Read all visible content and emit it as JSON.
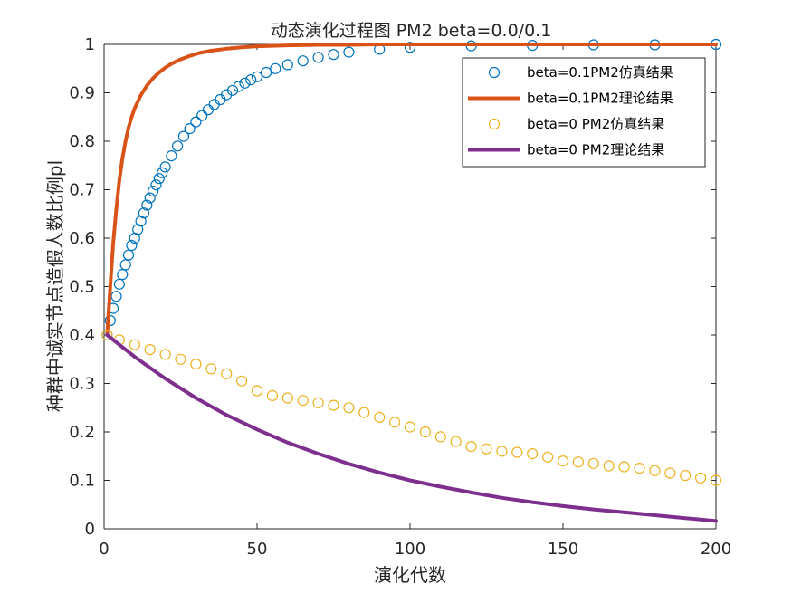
{
  "chart_data": {
    "type": "line",
    "title": "动态演化过程图 PM2 beta=0.0/0.1",
    "xlabel": "演化代数",
    "ylabel": "种群中诚实节点造假人数比例pl",
    "xlim": [
      0,
      200
    ],
    "ylim": [
      0,
      1
    ],
    "xticks": [
      0,
      50,
      100,
      150,
      200
    ],
    "xtick_labels": [
      "0",
      "50",
      "100",
      "150",
      "200"
    ],
    "yticks": [
      0,
      0.1,
      0.2,
      0.3,
      0.4,
      0.5,
      0.6,
      0.7,
      0.8,
      0.9,
      1
    ],
    "ytick_labels": [
      "0",
      "0.1",
      "0.2",
      "0.3",
      "0.4",
      "0.5",
      "0.6",
      "0.7",
      "0.8",
      "0.9",
      "1"
    ],
    "grid": false,
    "legend_position": "top-right",
    "series": [
      {
        "name": "beta=0.1PM2仿真结果",
        "style": "markers",
        "color": "#0072BD",
        "x": [
          1,
          2,
          3,
          4,
          5,
          6,
          7,
          8,
          9,
          10,
          11,
          12,
          13,
          14,
          15,
          16,
          17,
          18,
          19,
          20,
          22,
          24,
          26,
          28,
          30,
          32,
          34,
          36,
          38,
          40,
          42,
          44,
          46,
          48,
          50,
          53,
          56,
          60,
          65,
          70,
          75,
          80,
          90,
          100,
          120,
          140,
          160,
          180,
          200
        ],
        "y": [
          0.4,
          0.43,
          0.455,
          0.48,
          0.505,
          0.525,
          0.545,
          0.565,
          0.585,
          0.6,
          0.618,
          0.635,
          0.652,
          0.668,
          0.683,
          0.697,
          0.71,
          0.723,
          0.735,
          0.747,
          0.77,
          0.79,
          0.81,
          0.826,
          0.84,
          0.853,
          0.865,
          0.876,
          0.886,
          0.896,
          0.905,
          0.913,
          0.92,
          0.927,
          0.933,
          0.942,
          0.95,
          0.958,
          0.966,
          0.973,
          0.979,
          0.984,
          0.99,
          0.994,
          0.997,
          0.998,
          0.999,
          0.999,
          1.0
        ]
      },
      {
        "name": "beta=0.1PM2理论结果",
        "style": "line",
        "color": "#D95319",
        "x": [
          1,
          2,
          3,
          4,
          5,
          6,
          7,
          8,
          9,
          10,
          12,
          14,
          16,
          18,
          20,
          22,
          25,
          28,
          31,
          35,
          40,
          45,
          50,
          55,
          60,
          70,
          80,
          90,
          100,
          120,
          150,
          200
        ],
        "y": [
          0.4,
          0.5,
          0.59,
          0.66,
          0.72,
          0.765,
          0.8,
          0.828,
          0.85,
          0.868,
          0.895,
          0.915,
          0.93,
          0.942,
          0.952,
          0.96,
          0.969,
          0.976,
          0.982,
          0.987,
          0.991,
          0.994,
          0.996,
          0.997,
          0.998,
          0.999,
          0.999,
          1.0,
          1.0,
          1.0,
          1.0,
          1.0
        ]
      },
      {
        "name": "beta=0 PM2仿真结果",
        "style": "markers",
        "color": "#EDB120",
        "x": [
          1,
          5,
          10,
          15,
          20,
          25,
          30,
          35,
          40,
          45,
          50,
          55,
          60,
          65,
          70,
          75,
          80,
          85,
          90,
          95,
          100,
          105,
          110,
          115,
          120,
          125,
          130,
          135,
          140,
          145,
          150,
          155,
          160,
          165,
          170,
          175,
          180,
          185,
          190,
          195,
          200
        ],
        "y": [
          0.4,
          0.39,
          0.38,
          0.37,
          0.36,
          0.35,
          0.34,
          0.33,
          0.32,
          0.305,
          0.285,
          0.275,
          0.27,
          0.265,
          0.26,
          0.255,
          0.25,
          0.24,
          0.23,
          0.22,
          0.21,
          0.2,
          0.19,
          0.18,
          0.17,
          0.165,
          0.16,
          0.158,
          0.155,
          0.148,
          0.14,
          0.138,
          0.135,
          0.13,
          0.128,
          0.125,
          0.12,
          0.115,
          0.11,
          0.105,
          0.1
        ]
      },
      {
        "name": "beta=0 PM2理论结果",
        "style": "line",
        "color": "#7E2F8E",
        "x": [
          1,
          10,
          20,
          30,
          40,
          50,
          60,
          70,
          80,
          90,
          100,
          110,
          120,
          130,
          140,
          150,
          160,
          170,
          180,
          190,
          200
        ],
        "y": [
          0.4,
          0.355,
          0.31,
          0.27,
          0.235,
          0.205,
          0.178,
          0.155,
          0.134,
          0.116,
          0.1,
          0.087,
          0.075,
          0.064,
          0.055,
          0.047,
          0.04,
          0.034,
          0.028,
          0.022,
          0.016
        ]
      }
    ]
  }
}
